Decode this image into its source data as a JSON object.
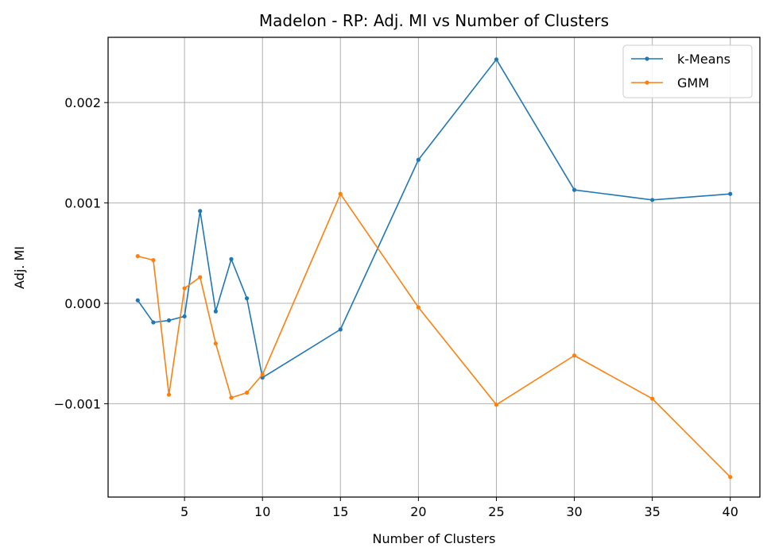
{
  "chart_data": {
    "type": "line",
    "title": "Madelon - RP: Adj. MI vs Number of Clusters",
    "xlabel": "Number of Clusters",
    "ylabel": "Adj. MI",
    "xlim": [
      0.1,
      41.9
    ],
    "ylim": [
      -0.00193,
      0.00265
    ],
    "xticks": [
      5,
      10,
      15,
      20,
      25,
      30,
      35,
      40
    ],
    "xtick_labels": [
      "5",
      "10",
      "15",
      "20",
      "25",
      "30",
      "35",
      "40"
    ],
    "yticks": [
      -0.001,
      0.0,
      0.001,
      0.002
    ],
    "ytick_labels": [
      "−0.001",
      "0.000",
      "0.001",
      "0.002"
    ],
    "grid": true,
    "legend_position": "top-right",
    "x": [
      2,
      3,
      4,
      5,
      6,
      7,
      8,
      9,
      10,
      15,
      20,
      25,
      30,
      35,
      40
    ],
    "series": [
      {
        "name": "k-Means",
        "color": "#1f77b4",
        "values": [
          3e-05,
          -0.00019,
          -0.00017,
          -0.00013,
          0.00092,
          -8e-05,
          0.00044,
          5e-05,
          -0.00074,
          -0.00026,
          0.00143,
          0.00243,
          0.00113,
          0.00103,
          0.00109
        ]
      },
      {
        "name": "GMM",
        "color": "#ff7f0e",
        "values": [
          0.00047,
          0.00043,
          -0.00091,
          0.00015,
          0.00026,
          -0.0004,
          -0.00094,
          -0.00089,
          -0.00071,
          0.00109,
          -4e-05,
          -0.00101,
          -0.00052,
          -0.00095,
          -0.00173
        ]
      }
    ]
  }
}
